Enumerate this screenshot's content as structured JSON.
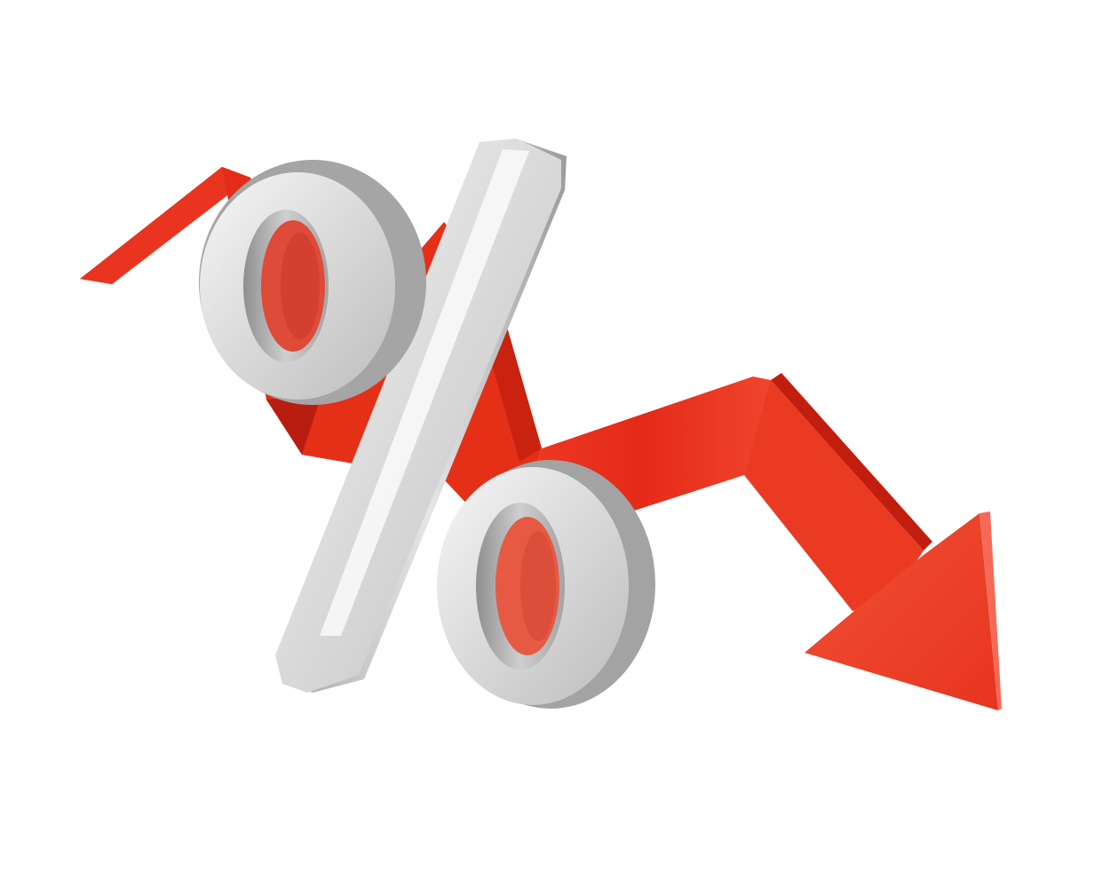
{
  "scene": {
    "background": "#ffffff",
    "subject": "percent-sign-with-downward-trend-arrow",
    "colors": {
      "arrow_light": "#f0452e",
      "arrow_main": "#e5321f",
      "arrow_dark": "#c41f12",
      "arrow_shadow": "#a8170c",
      "silver_light": "#f4f4f4",
      "silver_mid": "#d2d2d2",
      "silver_dark": "#9a9a9a",
      "silver_edge": "#7d7d7d"
    }
  }
}
